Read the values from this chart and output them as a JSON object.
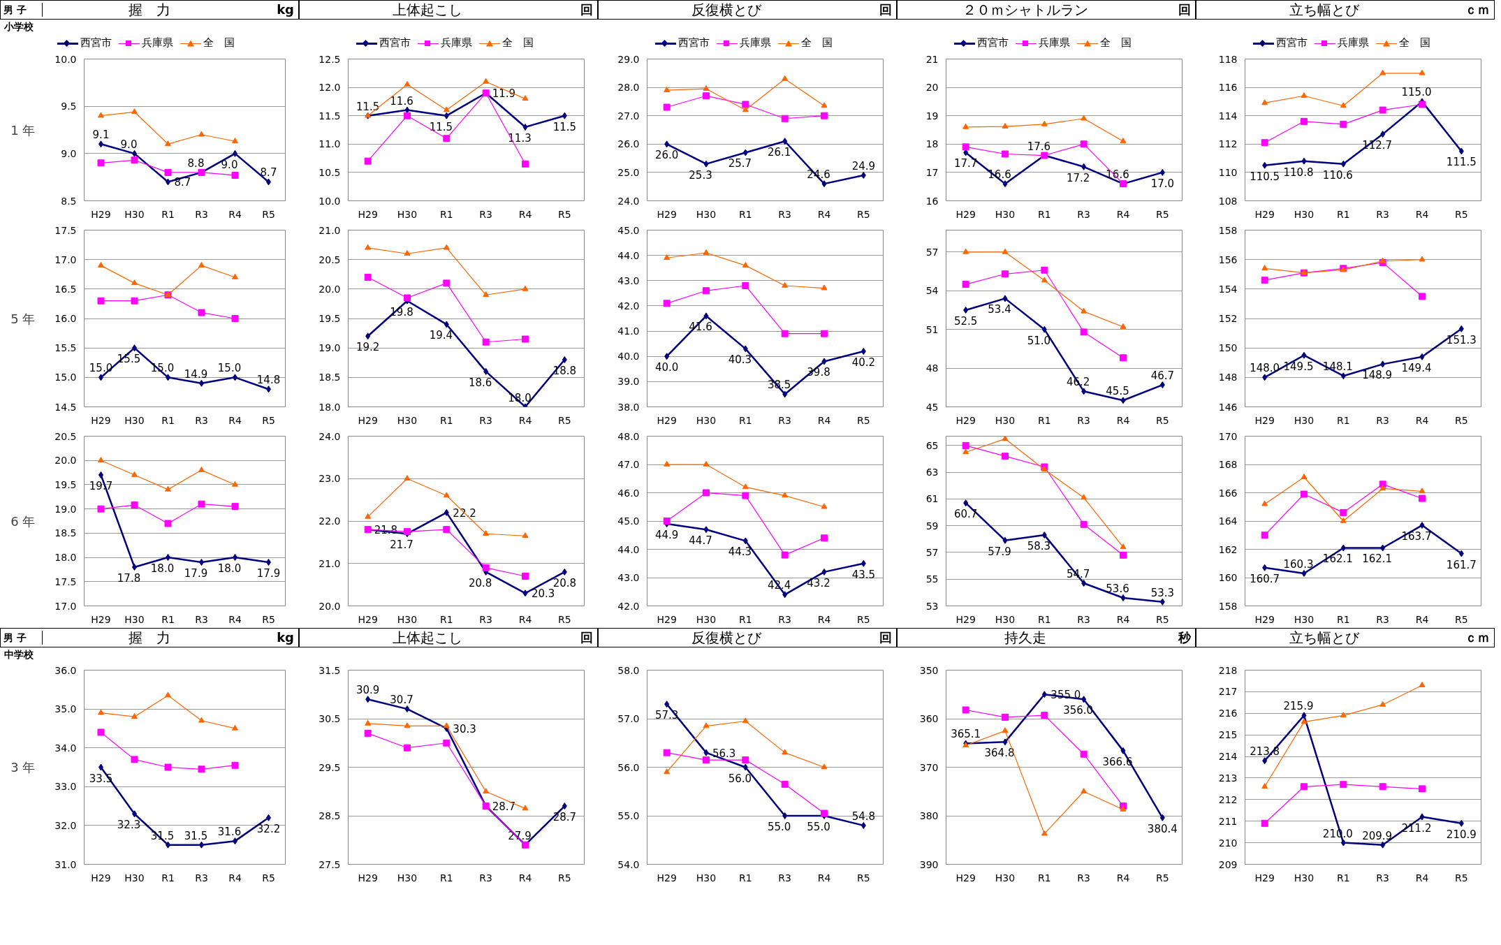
{
  "chart_data": [
    {
      "type": "line",
      "title": "握　力",
      "annotations": [
        "男 子",
        "小学校",
        "kg"
      ],
      "ylabel": "1 年",
      "categories": [
        "H29",
        "H30",
        "R1",
        "R3",
        "R4",
        "R5"
      ],
      "ylim": [
        8.5,
        10.0
      ],
      "yticks": [
        8.5,
        {
          "value": 9,
          "label": "9.0"
        },
        9.5,
        {
          "value": 10,
          "label": "10.0"
        }
      ],
      "grid": "y",
      "legend": "top",
      "series": [
        {
          "name": "西宮市",
          "color": "#000080",
          "marker": "diamond",
          "values": [
            9.1,
            9.0,
            8.7,
            8.8,
            9.0,
            8.7
          ],
          "value_labels": [
            "9.1",
            "9.0",
            "8.7",
            "8.8",
            "9.0",
            "8.7"
          ]
        },
        {
          "name": "兵庫県",
          "color": "#ff00ff",
          "marker": "square",
          "values": [
            8.9,
            8.93,
            8.8,
            8.8,
            8.77,
            null
          ]
        },
        {
          "name": "全　国",
          "color": "#ff6600",
          "marker": "triangle",
          "values": [
            9.4,
            9.44,
            9.1,
            9.2,
            9.13,
            null
          ]
        }
      ]
    },
    {
      "type": "line",
      "title": "上体起こし",
      "annotations": [
        "回"
      ],
      "categories": [
        "H29",
        "H30",
        "R1",
        "R3",
        "R4",
        "R5"
      ],
      "ylim": [
        10.0,
        12.5
      ],
      "yticks": [
        {
          "value": 10,
          "label": "10.0"
        },
        10.5,
        {
          "value": 11,
          "label": "11.0"
        },
        11.5,
        {
          "value": 12,
          "label": "12.0"
        },
        12.5
      ],
      "grid": "y",
      "legend": "top",
      "series": [
        {
          "name": "西宮市",
          "color": "#000080",
          "marker": "diamond",
          "values": [
            11.5,
            11.6,
            11.5,
            11.9,
            11.3,
            11.5
          ],
          "value_labels": [
            "11.5",
            "11.6",
            "11.5",
            "11.9",
            "11.3",
            "11.5"
          ]
        },
        {
          "name": "兵庫県",
          "color": "#ff00ff",
          "marker": "square",
          "values": [
            10.7,
            11.5,
            11.1,
            11.9,
            10.65,
            null
          ]
        },
        {
          "name": "全　国",
          "color": "#ff6600",
          "marker": "triangle",
          "values": [
            11.5,
            12.05,
            11.6,
            12.1,
            11.8,
            null
          ]
        }
      ]
    },
    {
      "type": "line",
      "title": "反復横とび",
      "annotations": [
        "回"
      ],
      "categories": [
        "H29",
        "H30",
        "R1",
        "R3",
        "R4",
        "R5"
      ],
      "ylim": [
        24.0,
        29.0
      ],
      "yticks": [
        {
          "value": 24,
          "label": "24.0"
        },
        {
          "value": 25,
          "label": "25.0"
        },
        {
          "value": 26,
          "label": "26.0"
        },
        {
          "value": 27,
          "label": "27.0"
        },
        {
          "value": 28,
          "label": "28.0"
        },
        {
          "value": 29,
          "label": "29.0"
        }
      ],
      "grid": "y",
      "legend": "top",
      "series": [
        {
          "name": "西宮市",
          "color": "#000080",
          "marker": "diamond",
          "values": [
            26.0,
            25.3,
            25.7,
            26.1,
            24.6,
            24.9
          ],
          "value_labels": [
            "26.0",
            "25.3",
            "25.7",
            "26.1",
            "24.6",
            "24.9"
          ]
        },
        {
          "name": "兵庫県",
          "color": "#ff00ff",
          "marker": "square",
          "values": [
            27.3,
            27.7,
            27.4,
            26.9,
            27.0,
            null
          ]
        },
        {
          "name": "全　国",
          "color": "#ff6600",
          "marker": "triangle",
          "values": [
            27.9,
            27.95,
            27.2,
            28.3,
            27.35,
            null
          ]
        }
      ]
    },
    {
      "type": "line",
      "title": "２０ｍシャトルラン",
      "annotations": [
        "回"
      ],
      "categories": [
        "H29",
        "H30",
        "R1",
        "R3",
        "R4",
        "R5"
      ],
      "ylim": [
        16,
        21
      ],
      "yticks": [
        16,
        17,
        18,
        19,
        20,
        21
      ],
      "grid": "y",
      "legend": "top",
      "series": [
        {
          "name": "西宮市",
          "color": "#000080",
          "marker": "diamond",
          "values": [
            17.7,
            16.6,
            17.6,
            17.2,
            16.6,
            17.0
          ],
          "value_labels": [
            "17.7",
            "16.6",
            "17.6",
            "17.2",
            "16.6",
            "17.0"
          ]
        },
        {
          "name": "兵庫県",
          "color": "#ff00ff",
          "marker": "square",
          "values": [
            17.9,
            17.65,
            17.6,
            18.0,
            16.6,
            null
          ]
        },
        {
          "name": "全　国",
          "color": "#ff6600",
          "marker": "triangle",
          "values": [
            18.6,
            18.62,
            18.7,
            18.9,
            18.1,
            null
          ]
        }
      ]
    },
    {
      "type": "line",
      "title": "立ち幅とび",
      "annotations": [
        "ｃｍ"
      ],
      "categories": [
        "H29",
        "H30",
        "R1",
        "R3",
        "R4",
        "R5"
      ],
      "ylim": [
        108,
        118
      ],
      "yticks": [
        108,
        110,
        112,
        114,
        116,
        118
      ],
      "grid": "y",
      "legend": "top",
      "series": [
        {
          "name": "西宮市",
          "color": "#000080",
          "marker": "diamond",
          "values": [
            110.5,
            110.8,
            110.6,
            112.7,
            115.0,
            111.5
          ],
          "value_labels": [
            "110.5",
            "110.8",
            "110.6",
            "112.7",
            "115.0",
            "111.5"
          ]
        },
        {
          "name": "兵庫県",
          "color": "#ff00ff",
          "marker": "square",
          "values": [
            112.1,
            113.6,
            113.4,
            114.4,
            114.8,
            null
          ]
        },
        {
          "name": "全　国",
          "color": "#ff6600",
          "marker": "triangle",
          "values": [
            114.9,
            115.4,
            114.7,
            117.0,
            117.0,
            null
          ]
        }
      ]
    },
    {
      "type": "line",
      "ylabel": "5 年",
      "categories": [
        "H29",
        "H30",
        "R1",
        "R3",
        "R4",
        "R5"
      ],
      "ylim": [
        14.5,
        17.5
      ],
      "yticks": [
        14.5,
        {
          "value": 15,
          "label": "15.0"
        },
        15.5,
        {
          "value": 16,
          "label": "16.0"
        },
        16.5,
        {
          "value": 17,
          "label": "17.0"
        },
        17.5
      ],
      "grid": "y",
      "series": [
        {
          "color": "#000080",
          "marker": "diamond",
          "values": [
            15.0,
            15.5,
            15.0,
            14.9,
            15.0,
            14.8
          ],
          "value_labels": [
            "15.0",
            "15.5",
            "15.0",
            "14.9",
            "15.0",
            "14.8"
          ]
        },
        {
          "color": "#ff00ff",
          "marker": "square",
          "values": [
            16.3,
            16.3,
            16.4,
            16.1,
            16.0,
            null
          ]
        },
        {
          "color": "#ff6600",
          "marker": "triangle",
          "values": [
            16.9,
            16.6,
            16.4,
            16.9,
            16.7,
            null
          ]
        }
      ]
    },
    {
      "type": "line",
      "categories": [
        "H29",
        "H30",
        "R1",
        "R3",
        "R4",
        "R5"
      ],
      "ylim": [
        18.0,
        21.0
      ],
      "yticks": [
        {
          "value": 18,
          "label": "18.0"
        },
        18.5,
        {
          "value": 19,
          "label": "19.0"
        },
        19.5,
        {
          "value": 20,
          "label": "20.0"
        },
        20.5,
        {
          "value": 21,
          "label": "21.0"
        }
      ],
      "grid": "y",
      "series": [
        {
          "color": "#000080",
          "marker": "diamond",
          "values": [
            19.2,
            19.8,
            19.4,
            18.6,
            18.0,
            18.8
          ],
          "value_labels": [
            "19.2",
            "19.8",
            "19.4",
            "18.6",
            "18.0",
            "18.8"
          ]
        },
        {
          "color": "#ff00ff",
          "marker": "square",
          "values": [
            20.2,
            19.85,
            20.1,
            19.1,
            19.15,
            null
          ]
        },
        {
          "color": "#ff6600",
          "marker": "triangle",
          "values": [
            20.7,
            20.6,
            20.7,
            19.9,
            20.0,
            null
          ]
        }
      ]
    },
    {
      "type": "line",
      "categories": [
        "H29",
        "H30",
        "R1",
        "R3",
        "R4",
        "R5"
      ],
      "ylim": [
        38.0,
        45.0
      ],
      "yticks": [
        {
          "value": 38,
          "label": "38.0"
        },
        {
          "value": 39,
          "label": "39.0"
        },
        {
          "value": 40,
          "label": "40.0"
        },
        {
          "value": 41,
          "label": "41.0"
        },
        {
          "value": 42,
          "label": "42.0"
        },
        {
          "value": 43,
          "label": "43.0"
        },
        {
          "value": 44,
          "label": "44.0"
        },
        {
          "value": 45,
          "label": "45.0"
        }
      ],
      "grid": "y",
      "series": [
        {
          "color": "#000080",
          "marker": "diamond",
          "values": [
            40.0,
            41.6,
            40.3,
            38.5,
            39.8,
            40.2
          ],
          "value_labels": [
            "40.0",
            "41.6",
            "40.3",
            "38.5",
            "39.8",
            "40.2"
          ]
        },
        {
          "color": "#ff00ff",
          "marker": "square",
          "values": [
            42.1,
            42.6,
            42.8,
            40.9,
            40.9,
            null
          ]
        },
        {
          "color": "#ff6600",
          "marker": "triangle",
          "values": [
            43.9,
            44.1,
            43.6,
            42.8,
            42.7,
            null
          ]
        }
      ]
    },
    {
      "type": "line",
      "categories": [
        "H29",
        "H30",
        "R1",
        "R3",
        "R4",
        "R5"
      ],
      "ylim": [
        45,
        58.7
      ],
      "yticks": [
        45,
        48,
        51,
        54,
        57
      ],
      "grid": "y",
      "series": [
        {
          "color": "#000080",
          "marker": "diamond",
          "values": [
            52.5,
            53.4,
            51.0,
            46.2,
            45.5,
            46.7
          ],
          "value_labels": [
            "52.5",
            "53.4",
            "51.0",
            "46.2",
            "45.5",
            "46.7"
          ]
        },
        {
          "color": "#ff00ff",
          "marker": "square",
          "values": [
            54.5,
            55.3,
            55.6,
            50.8,
            48.8,
            null
          ]
        },
        {
          "color": "#ff6600",
          "marker": "triangle",
          "values": [
            57.0,
            57.0,
            54.8,
            52.4,
            51.2,
            null
          ]
        }
      ]
    },
    {
      "type": "line",
      "categories": [
        "H29",
        "H30",
        "R1",
        "R3",
        "R4",
        "R5"
      ],
      "ylim": [
        146,
        158
      ],
      "yticks": [
        146,
        148,
        150,
        152,
        154,
        156,
        158
      ],
      "grid": "y",
      "series": [
        {
          "color": "#000080",
          "marker": "diamond",
          "values": [
            148.0,
            149.5,
            148.1,
            148.9,
            149.4,
            151.3
          ],
          "value_labels": [
            "148.0",
            "149.5",
            "148.1",
            "148.9",
            "149.4",
            "151.3"
          ]
        },
        {
          "color": "#ff00ff",
          "marker": "square",
          "values": [
            154.6,
            155.1,
            155.4,
            155.8,
            153.5,
            null
          ]
        },
        {
          "color": "#ff6600",
          "marker": "triangle",
          "values": [
            155.4,
            155.1,
            155.3,
            155.9,
            156.0,
            null
          ]
        }
      ]
    },
    {
      "type": "line",
      "ylabel": "6 年",
      "categories": [
        "H29",
        "H30",
        "R1",
        "R3",
        "R4",
        "R5"
      ],
      "ylim": [
        17.0,
        20.5
      ],
      "yticks": [
        {
          "value": 17,
          "label": "17.0"
        },
        17.5,
        {
          "value": 18,
          "label": "18.0"
        },
        18.5,
        {
          "value": 19,
          "label": "19.0"
        },
        19.5,
        {
          "value": 20,
          "label": "20.0"
        },
        20.5
      ],
      "grid": "y",
      "series": [
        {
          "color": "#000080",
          "marker": "diamond",
          "values": [
            19.7,
            17.8,
            18.0,
            17.9,
            18.0,
            17.9
          ],
          "value_labels": [
            "19.7",
            "17.8",
            "18.0",
            "17.9",
            "18.0",
            "17.9"
          ]
        },
        {
          "color": "#ff00ff",
          "marker": "square",
          "values": [
            19.0,
            19.08,
            18.7,
            19.1,
            19.05,
            null
          ]
        },
        {
          "color": "#ff6600",
          "marker": "triangle",
          "values": [
            20.0,
            19.7,
            19.4,
            19.8,
            19.5,
            null
          ]
        }
      ]
    },
    {
      "type": "line",
      "categories": [
        "H29",
        "H30",
        "R1",
        "R3",
        "R4",
        "R5"
      ],
      "ylim": [
        20.0,
        24.0
      ],
      "yticks": [
        {
          "value": 20,
          "label": "20.0"
        },
        {
          "value": 21,
          "label": "21.0"
        },
        {
          "value": 22,
          "label": "22.0"
        },
        {
          "value": 23,
          "label": "23.0"
        },
        {
          "value": 24,
          "label": "24.0"
        }
      ],
      "grid": "y",
      "series": [
        {
          "color": "#000080",
          "marker": "diamond",
          "values": [
            21.8,
            21.7,
            22.2,
            20.8,
            20.3,
            20.8
          ],
          "value_labels": [
            "21.8",
            "21.7",
            "22.2",
            "20.8",
            "20.3",
            "20.8"
          ]
        },
        {
          "color": "#ff00ff",
          "marker": "square",
          "values": [
            21.8,
            21.75,
            21.8,
            20.9,
            20.7,
            null
          ]
        },
        {
          "color": "#ff6600",
          "marker": "triangle",
          "values": [
            22.1,
            23.0,
            22.6,
            21.7,
            21.65,
            null
          ]
        }
      ]
    },
    {
      "type": "line",
      "categories": [
        "H29",
        "H30",
        "R1",
        "R3",
        "R4",
        "R5"
      ],
      "ylim": [
        42.0,
        48.0
      ],
      "yticks": [
        {
          "value": 42,
          "label": "42.0"
        },
        {
          "value": 43,
          "label": "43.0"
        },
        {
          "value": 44,
          "label": "44.0"
        },
        {
          "value": 45,
          "label": "45.0"
        },
        {
          "value": 46,
          "label": "46.0"
        },
        {
          "value": 47,
          "label": "47.0"
        },
        {
          "value": 48,
          "label": "48.0"
        }
      ],
      "grid": "y",
      "series": [
        {
          "color": "#000080",
          "marker": "diamond",
          "values": [
            44.9,
            44.7,
            44.3,
            42.4,
            43.2,
            43.5
          ],
          "value_labels": [
            "44.9",
            "44.7",
            "44.3",
            "42.4",
            "43.2",
            "43.5"
          ]
        },
        {
          "color": "#ff00ff",
          "marker": "square",
          "values": [
            45.0,
            46.0,
            45.9,
            43.8,
            44.4,
            null
          ]
        },
        {
          "color": "#ff6600",
          "marker": "triangle",
          "values": [
            47.0,
            47.0,
            46.2,
            45.9,
            45.5,
            null
          ]
        }
      ]
    },
    {
      "type": "line",
      "categories": [
        "H29",
        "H30",
        "R1",
        "R3",
        "R4",
        "R5"
      ],
      "ylim": [
        53,
        65.7
      ],
      "yticks": [
        53,
        55,
        57,
        59,
        61,
        63,
        65
      ],
      "grid": "y",
      "series": [
        {
          "color": "#000080",
          "marker": "diamond",
          "values": [
            60.7,
            57.9,
            58.3,
            54.7,
            53.6,
            53.3
          ],
          "value_labels": [
            "60.7",
            "57.9",
            "58.3",
            "54.7",
            "53.6",
            "53.3"
          ]
        },
        {
          "color": "#ff00ff",
          "marker": "square",
          "values": [
            65.0,
            64.2,
            63.4,
            59.1,
            56.8,
            null
          ]
        },
        {
          "color": "#ff6600",
          "marker": "triangle",
          "values": [
            64.5,
            65.5,
            63.2,
            61.1,
            57.4,
            null
          ]
        }
      ]
    },
    {
      "type": "line",
      "categories": [
        "H29",
        "H30",
        "R1",
        "R3",
        "R4",
        "R5"
      ],
      "ylim": [
        158,
        170
      ],
      "yticks": [
        158,
        160,
        162,
        164,
        166,
        168,
        170
      ],
      "grid": "y",
      "series": [
        {
          "color": "#000080",
          "marker": "diamond",
          "values": [
            160.7,
            160.3,
            162.1,
            162.1,
            163.7,
            161.7
          ],
          "value_labels": [
            "160.7",
            "160.3",
            "162.1",
            "162.1",
            "163.7",
            "161.7"
          ]
        },
        {
          "color": "#ff00ff",
          "marker": "square",
          "values": [
            163.0,
            165.9,
            164.6,
            166.6,
            165.6,
            null
          ]
        },
        {
          "color": "#ff6600",
          "marker": "triangle",
          "values": [
            165.2,
            167.1,
            164.0,
            166.3,
            166.1,
            null
          ]
        }
      ]
    },
    {
      "type": "line",
      "title": "握　力",
      "annotations": [
        "男 子",
        "中学校",
        "kg"
      ],
      "ylabel": "3 年",
      "categories": [
        "H29",
        "H30",
        "R1",
        "R3",
        "R4",
        "R5"
      ],
      "ylim": [
        31.0,
        36.0
      ],
      "yticks": [
        {
          "value": 31,
          "label": "31.0"
        },
        {
          "value": 32,
          "label": "32.0"
        },
        {
          "value": 33,
          "label": "33.0"
        },
        {
          "value": 34,
          "label": "34.0"
        },
        {
          "value": 35,
          "label": "35.0"
        },
        {
          "value": 36,
          "label": "36.0"
        }
      ],
      "grid": "y",
      "series": [
        {
          "color": "#000080",
          "marker": "diamond",
          "values": [
            33.5,
            32.3,
            31.5,
            31.5,
            31.6,
            32.2
          ],
          "value_labels": [
            "33.5",
            "32.3",
            "31.5",
            "31.5",
            "31.6",
            "32.2"
          ]
        },
        {
          "color": "#ff00ff",
          "marker": "square",
          "values": [
            34.4,
            33.7,
            33.5,
            33.45,
            33.55,
            null
          ]
        },
        {
          "color": "#ff6600",
          "marker": "triangle",
          "values": [
            34.9,
            34.8,
            35.35,
            34.7,
            34.5,
            null
          ]
        }
      ]
    },
    {
      "type": "line",
      "title": "上体起こし",
      "annotations": [
        "回"
      ],
      "categories": [
        "H29",
        "H30",
        "R1",
        "R3",
        "R4",
        "R5"
      ],
      "ylim": [
        27.5,
        31.5
      ],
      "yticks": [
        27.5,
        28.5,
        29.5,
        30.5,
        31.5
      ],
      "grid": "y",
      "series": [
        {
          "color": "#000080",
          "marker": "diamond",
          "values": [
            30.9,
            30.7,
            30.3,
            28.7,
            27.9,
            28.7
          ],
          "value_labels": [
            "30.9",
            "30.7",
            "30.3",
            "28.7",
            "27.9",
            "28.7"
          ]
        },
        {
          "color": "#ff00ff",
          "marker": "square",
          "values": [
            30.2,
            29.9,
            30.0,
            28.7,
            27.9,
            null
          ]
        },
        {
          "color": "#ff6600",
          "marker": "triangle",
          "values": [
            30.4,
            30.35,
            30.35,
            29.0,
            28.65,
            null
          ]
        }
      ]
    },
    {
      "type": "line",
      "title": "反復横とび",
      "annotations": [
        "回"
      ],
      "categories": [
        "H29",
        "H30",
        "R1",
        "R3",
        "R4",
        "R5"
      ],
      "ylim": [
        54.0,
        58.0
      ],
      "yticks": [
        {
          "value": 54,
          "label": "54.0"
        },
        {
          "value": 55,
          "label": "55.0"
        },
        {
          "value": 56,
          "label": "56.0"
        },
        {
          "value": 57,
          "label": "57.0"
        },
        {
          "value": 58,
          "label": "58.0"
        }
      ],
      "grid": "y",
      "series": [
        {
          "color": "#000080",
          "marker": "diamond",
          "values": [
            57.3,
            56.3,
            56.0,
            55.0,
            55.0,
            54.8
          ],
          "value_labels": [
            "57.3",
            "56.3",
            "56.0",
            "55.0",
            "55.0",
            "54.8"
          ]
        },
        {
          "color": "#ff00ff",
          "marker": "square",
          "values": [
            56.3,
            56.15,
            56.15,
            55.65,
            55.05,
            null
          ]
        },
        {
          "color": "#ff6600",
          "marker": "triangle",
          "values": [
            55.9,
            56.85,
            56.95,
            56.3,
            56.0,
            null
          ]
        }
      ]
    },
    {
      "type": "line",
      "title": "持久走",
      "annotations": [
        "秒"
      ],
      "categories": [
        "H29",
        "H30",
        "R1",
        "R3",
        "R4",
        "R5"
      ],
      "ylim": [
        390,
        350
      ],
      "yticks": [
        350,
        360,
        370,
        380,
        390
      ],
      "grid": "y",
      "series": [
        {
          "color": "#000080",
          "marker": "diamond",
          "values": [
            365.1,
            364.8,
            355.0,
            356.0,
            366.6,
            380.4
          ],
          "value_labels": [
            "365.1",
            "364.8",
            "355.0",
            "356.0",
            "366.6",
            "380.4"
          ]
        },
        {
          "color": "#ff00ff",
          "marker": "square",
          "values": [
            358.2,
            359.7,
            359.3,
            367.3,
            378.0,
            null
          ]
        },
        {
          "color": "#ff6600",
          "marker": "triangle",
          "values": [
            365.5,
            362.5,
            383.7,
            375.0,
            378.7,
            null
          ]
        }
      ]
    },
    {
      "type": "line",
      "title": "立ち幅とび",
      "annotations": [
        "ｃｍ"
      ],
      "categories": [
        "H29",
        "H30",
        "R1",
        "R3",
        "R4",
        "R5"
      ],
      "ylim": [
        209,
        218
      ],
      "yticks": [
        209,
        210,
        211,
        212,
        213,
        214,
        215,
        216,
        217,
        218
      ],
      "grid": "y",
      "series": [
        {
          "color": "#000080",
          "marker": "diamond",
          "values": [
            213.8,
            215.9,
            210.0,
            209.9,
            211.2,
            210.9
          ],
          "value_labels": [
            "213.8",
            "215.9",
            "210.0",
            "209.9",
            "211.2",
            "210.9"
          ]
        },
        {
          "color": "#ff00ff",
          "marker": "square",
          "values": [
            210.9,
            212.6,
            212.7,
            212.6,
            212.5,
            null
          ]
        },
        {
          "color": "#ff6600",
          "marker": "triangle",
          "values": [
            212.6,
            215.6,
            215.9,
            216.4,
            217.3,
            null
          ]
        }
      ]
    }
  ]
}
